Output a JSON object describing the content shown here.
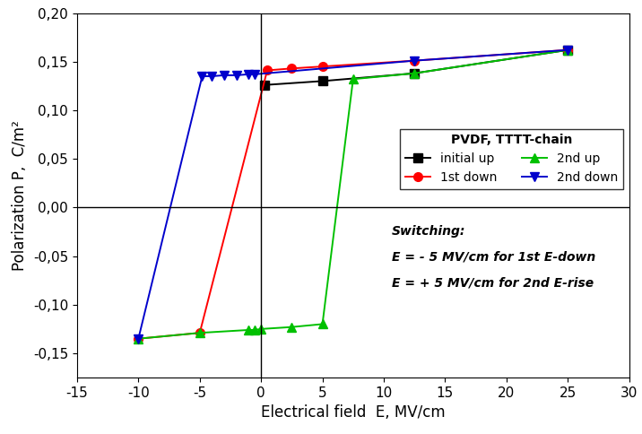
{
  "chart_data": {
    "type": "line",
    "x_label": "Electrical field  E, MV/cm",
    "y_label": "Polarization P,  C/m²",
    "xlim": [
      -15,
      30
    ],
    "xticks": [
      -15,
      -10,
      -5,
      0,
      5,
      10,
      15,
      20,
      25,
      30
    ],
    "ylim": [
      -0.175,
      0.2
    ],
    "yticks": [
      {
        "value": -0.15,
        "label": "-0,15"
      },
      {
        "value": -0.1,
        "label": "-0,10"
      },
      {
        "value": -0.05,
        "label": "-0,05"
      },
      {
        "value": 0.0,
        "label": "0,00"
      },
      {
        "value": 0.05,
        "label": "0,05"
      },
      {
        "value": 0.1,
        "label": "0,10"
      },
      {
        "value": 0.15,
        "label": "0,15"
      },
      {
        "value": 0.2,
        "label": "0,20"
      }
    ],
    "grid": false,
    "legend": "center right",
    "legend_title": "PVDF, TTTT-chain",
    "annotations": [
      "Switching:",
      "E = - 5 MV/cm for 1st E-down",
      "E = + 5 MV/cm for 2nd E-rise"
    ],
    "series": [
      {
        "name": "initial up",
        "color": "#000000",
        "marker": "square",
        "line_style": "solid",
        "x": [
          0.3,
          5,
          12.5,
          25
        ],
        "values": [
          0.126,
          0.13,
          0.138,
          0.162
        ]
      },
      {
        "name": "1st down",
        "color": "#ff0000",
        "marker": "circle",
        "line_style": "solid",
        "x": [
          25,
          12.5,
          5,
          2.5,
          0.5,
          -5,
          -10
        ],
        "values": [
          0.162,
          0.151,
          0.145,
          0.143,
          0.141,
          -0.129,
          -0.135
        ]
      },
      {
        "name": "2nd up",
        "color": "#00c000",
        "marker": "triangle_up",
        "line_style": "solid",
        "x": [
          -10,
          -5,
          -1,
          -0.5,
          0,
          2.5,
          5,
          7.5,
          12.5,
          25
        ],
        "values": [
          -0.135,
          -0.129,
          -0.126,
          -0.126,
          -0.125,
          -0.123,
          -0.12,
          0.132,
          0.138,
          0.162
        ]
      },
      {
        "name": "2nd down",
        "color": "#0000cc",
        "marker": "triangle_down",
        "line_style": "solid",
        "x": [
          25,
          12.5,
          -0.5,
          -1,
          -2,
          -3,
          -4,
          -4.8,
          -10
        ],
        "values": [
          0.162,
          0.151,
          0.137,
          0.137,
          0.136,
          0.136,
          0.135,
          0.135,
          -0.135
        ]
      }
    ]
  }
}
